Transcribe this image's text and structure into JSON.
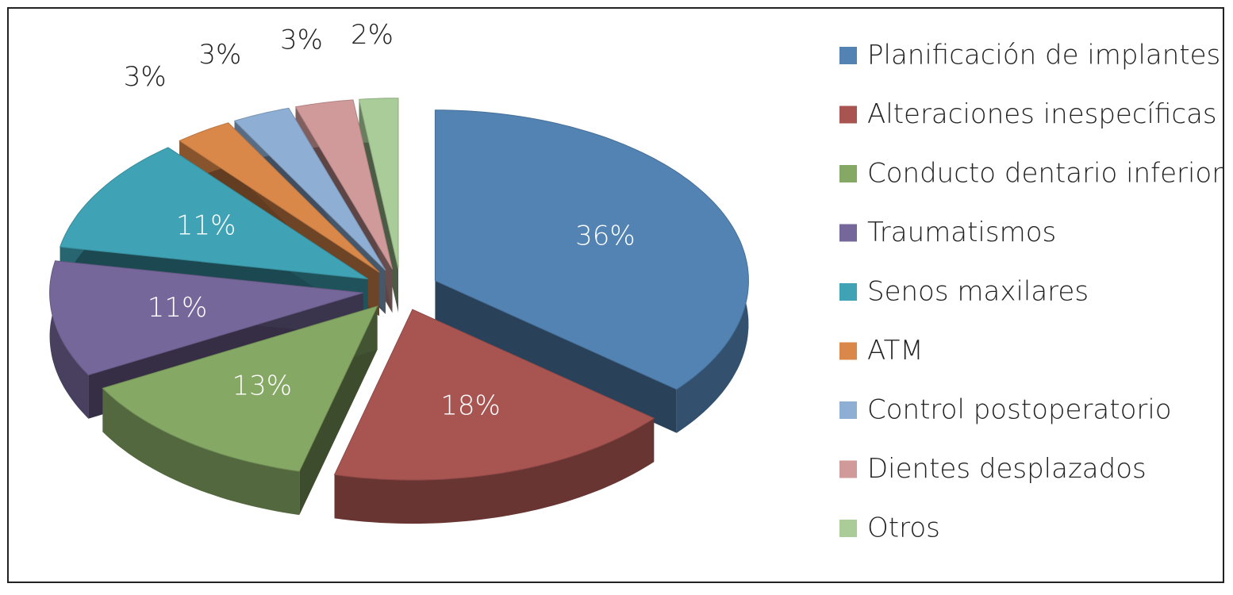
{
  "chart_data": {
    "type": "pie",
    "categories": [
      "Planificación de implantes",
      "Alteraciones inespecíficas",
      "Conducto dentario inferior",
      "Traumatismos",
      "Senos maxilares",
      "ATM",
      "Control postoperatorio",
      "Dientes desplazados",
      "Otros"
    ],
    "values": [
      36,
      18,
      13,
      11,
      11,
      3,
      3,
      3,
      2
    ],
    "value_labels": [
      "36%",
      "18%",
      "13%",
      "11%",
      "11%",
      "3%",
      "3%",
      "3%",
      "2%"
    ],
    "colors": [
      "#5283b3",
      "#a85552",
      "#86a865",
      "#76679a",
      "#3fa3b5",
      "#d9884a",
      "#8eaed4",
      "#d09a9a",
      "#a9cc98"
    ],
    "legend": "right"
  }
}
